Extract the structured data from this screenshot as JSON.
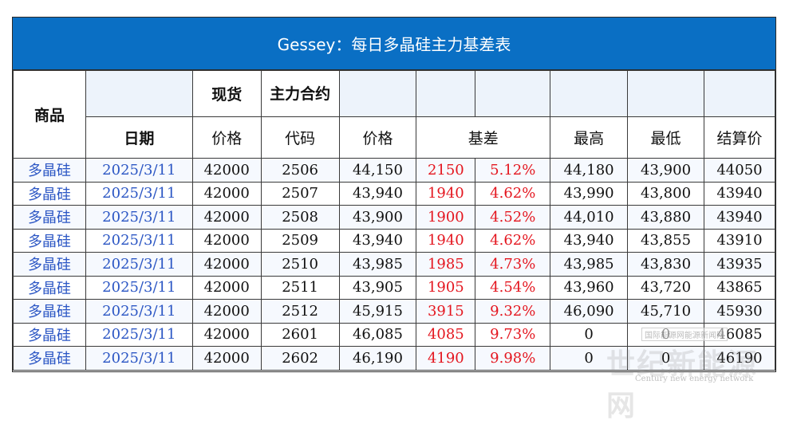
{
  "title": "Gessey：每日多晶硅主力基差表",
  "header": {
    "commodity": "商品",
    "spot": "现货",
    "main_contract": "主力合约",
    "date": "日期",
    "spot_price": "价格",
    "code": "代码",
    "contract_price": "价格",
    "basis": "基差",
    "high": "最高",
    "low": "最低",
    "settle": "结算价"
  },
  "rows": [
    {
      "commodity": "多晶硅",
      "date": "2025/3/11",
      "spot": "42000",
      "code": "2506",
      "price": "44,150",
      "basis": "2150",
      "basis_pct": "5.12%",
      "high": "44,180",
      "low": "43,900",
      "settle": "44050"
    },
    {
      "commodity": "多晶硅",
      "date": "2025/3/11",
      "spot": "42000",
      "code": "2507",
      "price": "43,940",
      "basis": "1940",
      "basis_pct": "4.62%",
      "high": "43,990",
      "low": "43,800",
      "settle": "43940"
    },
    {
      "commodity": "多晶硅",
      "date": "2025/3/11",
      "spot": "42000",
      "code": "2508",
      "price": "43,900",
      "basis": "1900",
      "basis_pct": "4.52%",
      "high": "44,010",
      "low": "43,880",
      "settle": "43940"
    },
    {
      "commodity": "多晶硅",
      "date": "2025/3/11",
      "spot": "42000",
      "code": "2509",
      "price": "43,940",
      "basis": "1940",
      "basis_pct": "4.62%",
      "high": "43,940",
      "low": "43,855",
      "settle": "43910"
    },
    {
      "commodity": "多晶硅",
      "date": "2025/3/11",
      "spot": "42000",
      "code": "2510",
      "price": "43,985",
      "basis": "1985",
      "basis_pct": "4.73%",
      "high": "43,985",
      "low": "43,830",
      "settle": "43935"
    },
    {
      "commodity": "多晶硅",
      "date": "2025/3/11",
      "spot": "42000",
      "code": "2511",
      "price": "43,905",
      "basis": "1905",
      "basis_pct": "4.54%",
      "high": "43,960",
      "low": "43,720",
      "settle": "43865"
    },
    {
      "commodity": "多晶硅",
      "date": "2025/3/11",
      "spot": "42000",
      "code": "2512",
      "price": "45,915",
      "basis": "3915",
      "basis_pct": "9.32%",
      "high": "46,090",
      "low": "45,710",
      "settle": "45930"
    },
    {
      "commodity": "多晶硅",
      "date": "2025/3/11",
      "spot": "42000",
      "code": "2601",
      "price": "46,085",
      "basis": "4085",
      "basis_pct": "9.73%",
      "high": "0",
      "low": "0",
      "settle": "46085"
    },
    {
      "commodity": "多晶硅",
      "date": "2025/3/11",
      "spot": "42000",
      "code": "2602",
      "price": "46,190",
      "basis": "4190",
      "basis_pct": "9.98%",
      "high": "0",
      "low": "0",
      "settle": "46190"
    }
  ],
  "watermark": {
    "main": "世纪新能源网",
    "sub": "Century new energy network",
    "stamp": "国际能源网能源新闻网"
  },
  "colors": {
    "title_bg": "#0a6fc4",
    "title_text": "#ffffff",
    "link_blue": "#2b56c4",
    "basis_red": "#e4161f",
    "header_tint": "#edf3fb"
  }
}
